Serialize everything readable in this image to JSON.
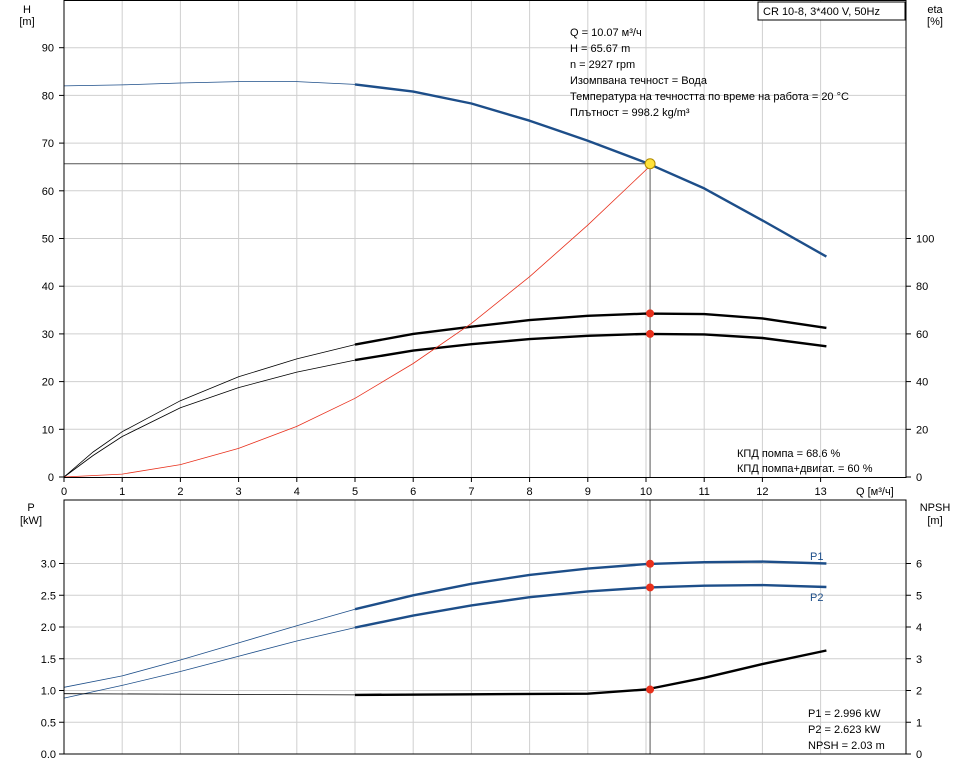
{
  "title": "CR 10-8, 3*400 V, 50Hz",
  "colors": {
    "blue": "#1d4e89",
    "red": "#e8301c",
    "black": "#000000",
    "grid": "#cfcfcf",
    "marker_yellow": "#ffe23a"
  },
  "info": [
    "Q = 10.07 м³/ч",
    "H = 65.67 m",
    "n = 2927 rpm",
    "Изомпвана течност = Вода",
    "Температура на течността по време на работа = 20 °C",
    "Плътност = 998.2 kg/m³"
  ],
  "efficiency_text": [
    "КПД помпа = 68.6 %",
    "КПД помпа+двигат. = 60 %"
  ],
  "power_text": [
    "P1 = 2.996 kW",
    "P2 = 2.623 kW",
    "NPSH = 2.03 m"
  ],
  "chart_data": [
    {
      "type": "line",
      "panel": "top",
      "xlabel": "Q [м³/ч]",
      "ylabel_left": [
        "H",
        "[m]"
      ],
      "ylabel_right": [
        "eta",
        "[%]"
      ],
      "xlim": [
        0,
        14
      ],
      "ylim_left": [
        0,
        100
      ],
      "ylim_right": [
        0,
        200
      ],
      "x_ticks": [
        0,
        1,
        2,
        3,
        4,
        5,
        6,
        7,
        8,
        9,
        10,
        11,
        12,
        13
      ],
      "y_ticks_left": [
        0,
        10,
        20,
        30,
        40,
        50,
        60,
        70,
        80,
        90
      ],
      "y_ticks_right": [
        0,
        20,
        40,
        60,
        80,
        100
      ],
      "grid": true,
      "duty_point": {
        "Q": 10.07,
        "H": 65.67
      },
      "series": [
        {
          "axis": "left",
          "color": "#1d4e89",
          "thick_from": 5,
          "points": [
            [
              0,
              82
            ],
            [
              1,
              82.2
            ],
            [
              2,
              82.6
            ],
            [
              3,
              82.9
            ],
            [
              4,
              82.9
            ],
            [
              5,
              82.3
            ],
            [
              6,
              80.8
            ],
            [
              7,
              78.3
            ],
            [
              8,
              74.7
            ],
            [
              9,
              70.5
            ],
            [
              10,
              65.9
            ],
            [
              11,
              60.5
            ],
            [
              12,
              53.8
            ],
            [
              13.1,
              46.2
            ]
          ]
        },
        {
          "axis": "right",
          "color": "#000000",
          "thick_from": 5,
          "points": [
            [
              0,
              0
            ],
            [
              0.5,
              10.5
            ],
            [
              1,
              19
            ],
            [
              2,
              32
            ],
            [
              3,
              42
            ],
            [
              4,
              49.5
            ],
            [
              5,
              55.5
            ],
            [
              6,
              60
            ],
            [
              7,
              63
            ],
            [
              8,
              65.8
            ],
            [
              9,
              67.6
            ],
            [
              10,
              68.5
            ],
            [
              11,
              68.3
            ],
            [
              12,
              66.5
            ],
            [
              13.1,
              62.5
            ]
          ]
        },
        {
          "axis": "right",
          "color": "#000000",
          "thick_from": 5,
          "points": [
            [
              0,
              0
            ],
            [
              0.5,
              9
            ],
            [
              1,
              17
            ],
            [
              2,
              29
            ],
            [
              3,
              37.5
            ],
            [
              4,
              44
            ],
            [
              5,
              49
            ],
            [
              6,
              53
            ],
            [
              7,
              55.7
            ],
            [
              8,
              57.8
            ],
            [
              9,
              59.2
            ],
            [
              10,
              60
            ],
            [
              11,
              59.8
            ],
            [
              12,
              58.3
            ],
            [
              13.1,
              54.8
            ]
          ]
        },
        {
          "axis": "left",
          "color": "#e8301c",
          "thick_from": null,
          "points": [
            [
              0,
              0
            ],
            [
              1,
              0.6
            ],
            [
              2,
              2.6
            ],
            [
              3,
              6
            ],
            [
              4,
              10.6
            ],
            [
              5,
              16.5
            ],
            [
              6,
              23.8
            ],
            [
              7,
              32.2
            ],
            [
              8,
              42
            ],
            [
              9,
              52.8
            ],
            [
              10.07,
              65.2
            ]
          ]
        }
      ],
      "markers": [
        {
          "axis": "left",
          "x": 10.07,
          "y": 65.67,
          "kind": "yellow"
        },
        {
          "axis": "right",
          "x": 10.07,
          "y": 68.6,
          "kind": "red"
        },
        {
          "axis": "right",
          "x": 10.07,
          "y": 60,
          "kind": "red"
        }
      ]
    },
    {
      "type": "line",
      "panel": "bottom",
      "ylabel_left": [
        "P",
        "[kW]"
      ],
      "ylabel_right": [
        "NPSH",
        "[m]"
      ],
      "xlim": [
        0,
        14
      ],
      "ylim_left": [
        0,
        3.5
      ],
      "ylim_right": [
        0,
        7
      ],
      "y_ticks_left": [
        "0.0",
        "0.5",
        "1.0",
        "1.5",
        "2.0",
        "2.5",
        "3.0"
      ],
      "y_ticks_right": [
        0,
        1,
        2,
        3,
        4,
        5,
        6
      ],
      "grid": true,
      "series": [
        {
          "name": "P1",
          "axis": "left",
          "color": "#1d4e89",
          "thick_from": 5,
          "points": [
            [
              0,
              1.05
            ],
            [
              1,
              1.23
            ],
            [
              2,
              1.48
            ],
            [
              3,
              1.75
            ],
            [
              4,
              2.02
            ],
            [
              5,
              2.28
            ],
            [
              6,
              2.5
            ],
            [
              7,
              2.68
            ],
            [
              8,
              2.82
            ],
            [
              9,
              2.92
            ],
            [
              10,
              2.99
            ],
            [
              11,
              3.02
            ],
            [
              12,
              3.03
            ],
            [
              13.1,
              3.0
            ]
          ]
        },
        {
          "name": "P2",
          "axis": "left",
          "color": "#1d4e89",
          "thick_from": 5,
          "points": [
            [
              0,
              0.88
            ],
            [
              1,
              1.08
            ],
            [
              2,
              1.3
            ],
            [
              3,
              1.54
            ],
            [
              4,
              1.78
            ],
            [
              5,
              1.99
            ],
            [
              6,
              2.18
            ],
            [
              7,
              2.34
            ],
            [
              8,
              2.47
            ],
            [
              9,
              2.56
            ],
            [
              10,
              2.62
            ],
            [
              11,
              2.65
            ],
            [
              12,
              2.66
            ],
            [
              13.1,
              2.63
            ]
          ]
        },
        {
          "axis": "right",
          "color": "#000000",
          "thick_from": 5,
          "points": [
            [
              0,
              1.9
            ],
            [
              5,
              1.86
            ],
            [
              7,
              1.88
            ],
            [
              9,
              1.9
            ],
            [
              10,
              2.03
            ],
            [
              11,
              2.4
            ],
            [
              12,
              2.83
            ],
            [
              13.1,
              3.26
            ]
          ]
        }
      ],
      "markers": [
        {
          "axis": "left",
          "x": 10.07,
          "y": 2.996,
          "kind": "red"
        },
        {
          "axis": "left",
          "x": 10.07,
          "y": 2.623,
          "kind": "red"
        },
        {
          "axis": "right",
          "x": 10.07,
          "y": 2.03,
          "kind": "red"
        }
      ]
    }
  ]
}
